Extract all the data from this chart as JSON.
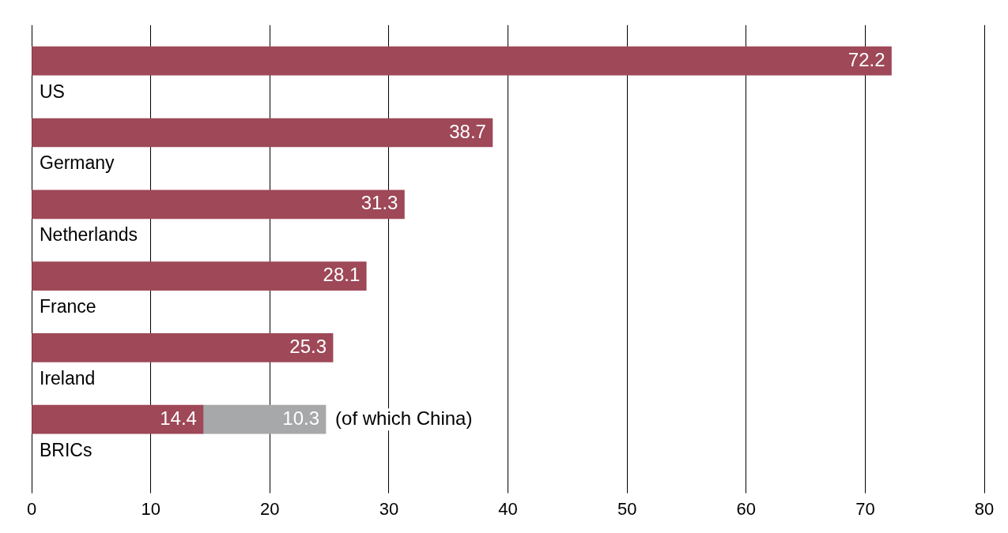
{
  "chart_data": {
    "type": "bar",
    "orientation": "horizontal",
    "stacked": true,
    "categories": [
      "US",
      "Germany",
      "Netherlands",
      "France",
      "Ireland",
      "BRICs"
    ],
    "series": [
      {
        "color": "#9e4858",
        "values": [
          72.2,
          38.7,
          31.3,
          28.1,
          25.3,
          14.4
        ]
      },
      {
        "color": "#a7a8aa",
        "values": [
          null,
          null,
          null,
          null,
          null,
          10.3
        ]
      }
    ],
    "annotations": [
      "(of which China)"
    ],
    "xlim": [
      0,
      80
    ],
    "xticks": [
      0,
      10,
      20,
      30,
      40,
      50,
      60,
      70,
      80
    ],
    "grid": "x",
    "data_labels": true,
    "legend": false
  }
}
